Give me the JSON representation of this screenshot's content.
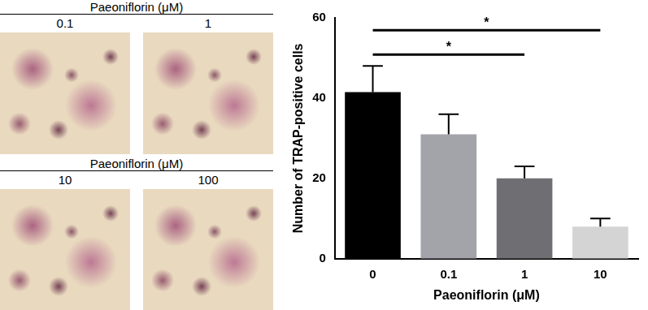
{
  "chart_data": {
    "type": "bar",
    "x_label": "Paeoniflorin (μM)",
    "y_label": "Number of TRAP-positive cells",
    "categories": [
      "0",
      "0.1",
      "1",
      "10"
    ],
    "values": [
      41.5,
      31,
      20,
      8
    ],
    "errors": [
      6.5,
      5,
      3,
      2
    ],
    "colors": [
      "#000000",
      "#a3a3aa",
      "#6f6f73",
      "#d4d4d4"
    ],
    "ylim": [
      0,
      60
    ],
    "yticks": [
      0,
      20,
      40,
      60
    ],
    "grid": false,
    "annotations": [
      {
        "from": "0",
        "to": "1",
        "label": "*"
      },
      {
        "from": "0",
        "to": "10",
        "label": "*"
      }
    ]
  },
  "micrographs": [
    {
      "header": "Paeoniflorin (μM)",
      "labels": [
        "0.1",
        "1"
      ]
    },
    {
      "header": "Paeoniflorin (μM)",
      "labels": [
        "10",
        "100"
      ]
    }
  ]
}
